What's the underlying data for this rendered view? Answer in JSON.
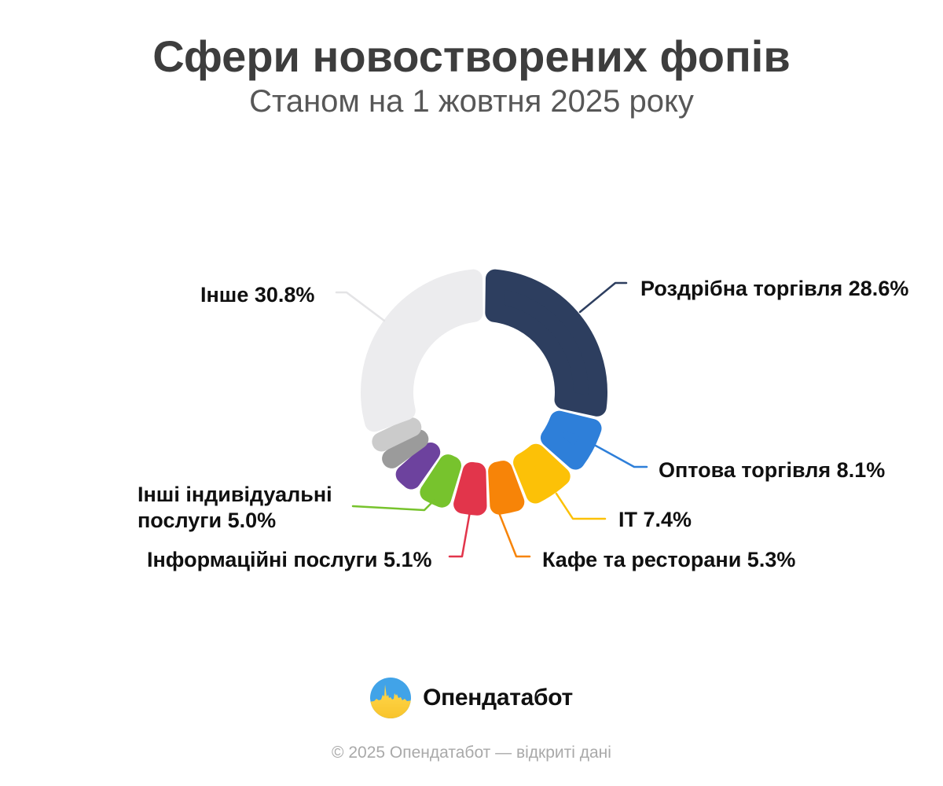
{
  "header": {
    "title": "Сфери новостворених фопів",
    "subtitle": "Станом на 1 жовтня 2025 року"
  },
  "callouts": {
    "other": "Інше 30.8%",
    "retail": "Роздрібна торгівля 28.6%",
    "wholesale": "Оптова торгівля 8.1%",
    "it": "IT 7.4%",
    "cafe": "Кафе та ресторани 5.3%",
    "info_services": "Інформаційні послуги 5.1%",
    "other_individual": "Інші індивідуальні послуги 5.0%"
  },
  "footer": {
    "logo_text": "Опендатабот",
    "copyright": "© 2025 Опендатабот — відкриті дані"
  },
  "colors": {
    "title": "#3d3d3d",
    "subtitle": "#575757",
    "label": "#101010",
    "copyright": "#a9a9a9",
    "logo_blue": "#41a3e8",
    "logo_yellow": "#ffd23e"
  },
  "chart_data": {
    "type": "pie",
    "variant": "donut",
    "title": "Сфери новостворених фопів",
    "subtitle": "Станом на 1 жовтня 2025 року",
    "unit": "%",
    "start_angle_deg": 0,
    "direction": "clockwise",
    "segments": [
      {
        "label": "Роздрібна торгівля",
        "value": 28.6,
        "color": "#2d3e5f",
        "labeled": true
      },
      {
        "label": "Оптова торгівля",
        "value": 8.1,
        "color": "#2e7fd9",
        "labeled": true
      },
      {
        "label": "IT",
        "value": 7.4,
        "color": "#fcc107",
        "labeled": true
      },
      {
        "label": "Кафе та ресторани",
        "value": 5.3,
        "color": "#f78408",
        "labeled": true
      },
      {
        "label": "Інформаційні послуги",
        "value": 5.1,
        "color": "#e2354b",
        "labeled": true
      },
      {
        "label": "Інші індивідуальні послуги",
        "value": 5.0,
        "color": "#77c32d",
        "labeled": true
      },
      {
        "label": "",
        "value": 4.2,
        "color": "#6d429e",
        "labeled": false
      },
      {
        "label": "",
        "value": 2.75,
        "color": "#9b9b9b",
        "labeled": false
      },
      {
        "label": "",
        "value": 2.75,
        "color": "#cbcbcb",
        "labeled": false
      },
      {
        "label": "Інше",
        "value": 30.8,
        "color": "#ececee",
        "labeled": true,
        "leader_color": "#e4e4e6"
      }
    ]
  }
}
